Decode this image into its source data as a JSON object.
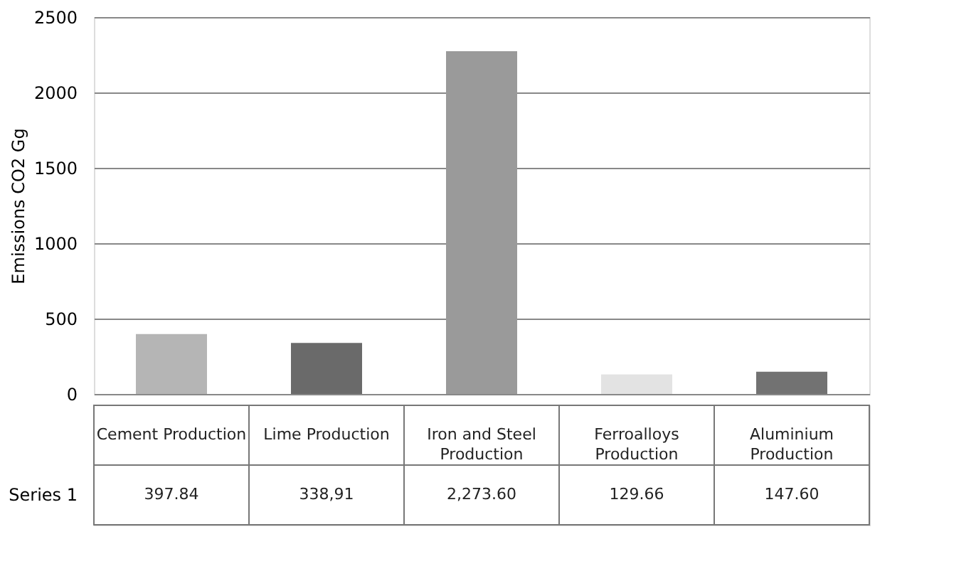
{
  "chart_data": {
    "type": "bar",
    "ylabel": "Emissions CO2 Gg",
    "categories": [
      "Cement Production",
      "Lime Production",
      "Iron and Steel Production",
      "Ferroalloys Production",
      "Aluminium Production"
    ],
    "series": [
      {
        "name": "Series 1",
        "values": [
          397.84,
          338.91,
          2273.6,
          129.66,
          147.6
        ],
        "colors": [
          "#b5b5b5",
          "#6a6a6a",
          "#9a9a9a",
          "#e3e3e3",
          "#727272"
        ],
        "value_labels": [
          "397.84",
          "338,91",
          "2,273.60",
          "129.66",
          "147.60"
        ]
      }
    ],
    "ylim": [
      0,
      2500
    ],
    "yticks": [
      0,
      500,
      1000,
      1500,
      2000,
      2500
    ],
    "grid": "y"
  }
}
